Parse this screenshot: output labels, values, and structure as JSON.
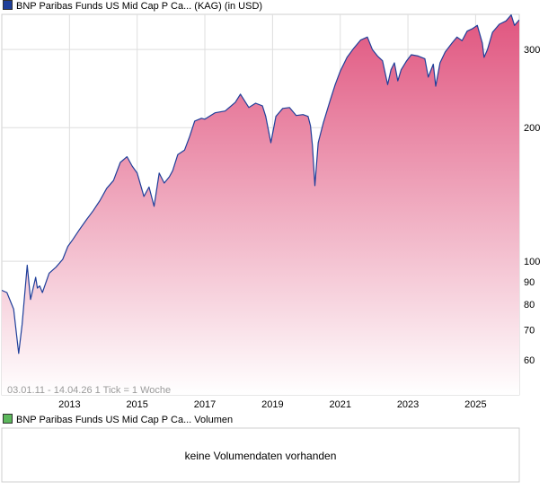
{
  "chart_data": {
    "type": "area",
    "title": "BNP Paribas Funds US Mid Cap P Ca... (KAG) (in USD)",
    "y_scale": "log",
    "ylim": [
      50,
      360
    ],
    "y_ticks": [
      60,
      70,
      80,
      90,
      100,
      200,
      300
    ],
    "y_tick_labels": [
      "60",
      "70",
      "80",
      "90",
      "100",
      "200",
      "300"
    ],
    "y_gridlines": [
      100,
      200,
      300
    ],
    "xlim": [
      2011.0,
      2026.29
    ],
    "x_ticks": [
      2013,
      2015,
      2017,
      2019,
      2021,
      2023,
      2025
    ],
    "x_tick_labels": [
      "2013",
      "2015",
      "2017",
      "2019",
      "2021",
      "2023",
      "2025"
    ],
    "grid": true,
    "series": [
      {
        "name": "BNP Paribas Funds US Mid Cap P Ca... (KAG) (in USD)",
        "color": "#1f3f9a",
        "fill_top": "#e0557f",
        "fill_bottom": "#ffffff",
        "x": [
          2011.0,
          2011.15,
          2011.35,
          2011.5,
          2011.6,
          2011.75,
          2011.85,
          2012.0,
          2012.05,
          2012.12,
          2012.2,
          2012.4,
          2012.6,
          2012.8,
          2012.95,
          2013.1,
          2013.3,
          2013.5,
          2013.7,
          2013.9,
          2014.1,
          2014.3,
          2014.5,
          2014.7,
          2014.85,
          2015.0,
          2015.2,
          2015.35,
          2015.5,
          2015.65,
          2015.8,
          2015.95,
          2016.05,
          2016.2,
          2016.4,
          2016.55,
          2016.7,
          2016.9,
          2017.0,
          2017.3,
          2017.6,
          2017.9,
          2018.05,
          2018.3,
          2018.5,
          2018.7,
          2018.8,
          2018.95,
          2019.1,
          2019.3,
          2019.5,
          2019.7,
          2019.9,
          2020.05,
          2020.12,
          2020.18,
          2020.25,
          2020.35,
          2020.5,
          2020.7,
          2020.85,
          2021.0,
          2021.2,
          2021.4,
          2021.6,
          2021.8,
          2021.95,
          2022.1,
          2022.25,
          2022.4,
          2022.5,
          2022.6,
          2022.7,
          2022.8,
          2022.95,
          2023.1,
          2023.3,
          2023.5,
          2023.6,
          2023.75,
          2023.82,
          2023.95,
          2024.1,
          2024.3,
          2024.45,
          2024.6,
          2024.75,
          2024.9,
          2025.05,
          2025.2,
          2025.25,
          2025.35,
          2025.5,
          2025.7,
          2025.9,
          2026.05,
          2026.15,
          2026.29
        ],
        "y": [
          86,
          85,
          78,
          62,
          72,
          98,
          82,
          92,
          87,
          88,
          85,
          94,
          97,
          101,
          108,
          112,
          118,
          124,
          130,
          137,
          146,
          152,
          167,
          172,
          164,
          158,
          140,
          147,
          133,
          158,
          150,
          155,
          160,
          174,
          178,
          191,
          207,
          210,
          209,
          216,
          218,
          228,
          238,
          222,
          227,
          224,
          212,
          185,
          212,
          221,
          222,
          213,
          214,
          212,
          202,
          182,
          148,
          185,
          205,
          230,
          250,
          268,
          288,
          302,
          315,
          320,
          300,
          290,
          283,
          250,
          270,
          280,
          255,
          270,
          282,
          292,
          290,
          286,
          260,
          278,
          248,
          280,
          296,
          310,
          320,
          314,
          330,
          334,
          340,
          310,
          288,
          300,
          328,
          342,
          348,
          359,
          340,
          350
        ]
      }
    ],
    "note": "03.01.11 - 14.04.26   1 Tick = 1 Woche",
    "volume_panel": {
      "title": "BNP Paribas Funds US Mid Cap P Ca... Volumen",
      "message": "keine Volumendaten vorhanden",
      "color": "#5cb85c"
    }
  }
}
